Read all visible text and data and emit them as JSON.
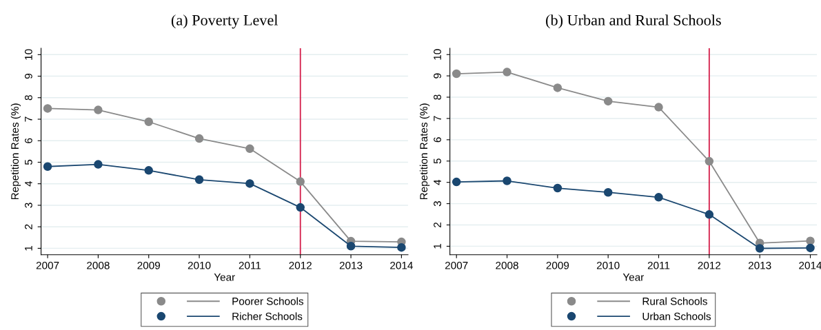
{
  "chart_data": [
    {
      "type": "line",
      "title": "(a) Poverty Level",
      "xlabel": "Year",
      "ylabel": "Repetition Rates (%)",
      "x": [
        2007,
        2008,
        2009,
        2010,
        2011,
        2012,
        2013,
        2014
      ],
      "series": [
        {
          "name": "Poorer Schools",
          "color": "#8a8a8a",
          "values": [
            7.5,
            7.43,
            6.88,
            6.1,
            5.63,
            4.1,
            1.33,
            1.3
          ]
        },
        {
          "name": "Richer Schools",
          "color": "#1a4770",
          "values": [
            4.8,
            4.9,
            4.62,
            4.19,
            4.01,
            2.9,
            1.1,
            1.04
          ]
        }
      ],
      "xlim": [
        2006.87,
        2014.13
      ],
      "xticks": [
        2007,
        2008,
        2009,
        2010,
        2011,
        2012,
        2013,
        2014
      ],
      "ylim": [
        0.7,
        10.3
      ],
      "yticks": [
        1,
        2,
        3,
        4,
        5,
        6,
        7,
        8,
        9,
        10
      ],
      "ref_lines": [
        {
          "axis": "x",
          "value": 2012,
          "color": "#d41e4a"
        }
      ],
      "grid": "y",
      "legend": "bottom",
      "marker": "circle",
      "line_style": "solid"
    },
    {
      "type": "line",
      "title": "(b) Urban and Rural Schools",
      "xlabel": "Year",
      "ylabel": "Repetition Rates (%)",
      "x": [
        2007,
        2008,
        2009,
        2010,
        2011,
        2012,
        2013,
        2014
      ],
      "series": [
        {
          "name": "Rural Schools",
          "color": "#8a8a8a",
          "values": [
            9.1,
            9.18,
            8.44,
            7.81,
            7.53,
            4.99,
            1.15,
            1.25
          ]
        },
        {
          "name": "Urban Schools",
          "color": "#1a4770",
          "values": [
            4.02,
            4.07,
            3.73,
            3.53,
            3.3,
            2.49,
            0.9,
            0.92
          ]
        }
      ],
      "xlim": [
        2006.87,
        2014.13
      ],
      "xticks": [
        2007,
        2008,
        2009,
        2010,
        2011,
        2012,
        2013,
        2014
      ],
      "ylim": [
        0.6,
        10.3
      ],
      "yticks": [
        1,
        2,
        3,
        4,
        5,
        6,
        7,
        8,
        9,
        10
      ],
      "ref_lines": [
        {
          "axis": "x",
          "value": 2012,
          "color": "#d41e4a"
        }
      ],
      "grid": "y",
      "legend": "bottom",
      "marker": "circle",
      "line_style": "solid"
    }
  ]
}
